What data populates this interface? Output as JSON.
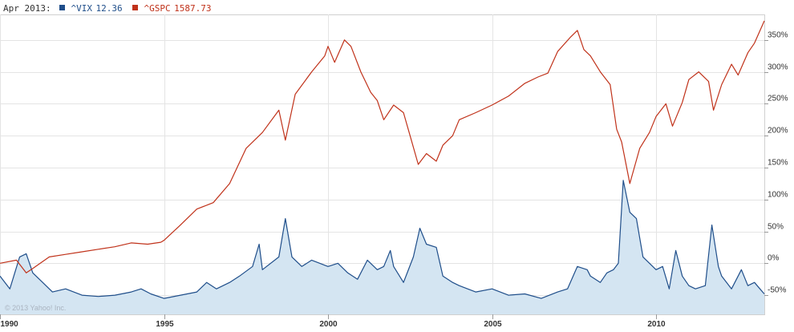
{
  "legend": {
    "date_label": "Apr 2013:",
    "series": [
      {
        "symbol": "^VIX",
        "value": "12.36",
        "color": "#1f4e8a"
      },
      {
        "symbol": "^GSPC",
        "value": "1587.73",
        "color": "#c0321a"
      }
    ]
  },
  "copyright": "© 2013 Yahoo! Inc.",
  "chart_data": {
    "type": "line",
    "grid": true,
    "y_axis_side": "right",
    "x_ticks": [
      "1990",
      "1995",
      "2000",
      "2005",
      "2010"
    ],
    "y_ticks": [
      "350%",
      "300%",
      "250%",
      "200%",
      "150%",
      "100%",
      "50%",
      "0%",
      "-50%"
    ],
    "ylim": [
      -80,
      390
    ],
    "xlim": [
      1990.0,
      2013.3
    ],
    "series": [
      {
        "name": "^GSPC",
        "color": "#c0321a",
        "area": false,
        "points": [
          [
            1990.0,
            0
          ],
          [
            1990.5,
            5
          ],
          [
            1990.8,
            -15
          ],
          [
            1991.0,
            -8
          ],
          [
            1991.5,
            10
          ],
          [
            1992.0,
            14
          ],
          [
            1992.5,
            18
          ],
          [
            1993.0,
            22
          ],
          [
            1993.5,
            26
          ],
          [
            1994.0,
            32
          ],
          [
            1994.5,
            30
          ],
          [
            1994.9,
            33
          ],
          [
            1995.0,
            36
          ],
          [
            1995.5,
            60
          ],
          [
            1996.0,
            85
          ],
          [
            1996.5,
            95
          ],
          [
            1997.0,
            125
          ],
          [
            1997.5,
            180
          ],
          [
            1998.0,
            205
          ],
          [
            1998.5,
            240
          ],
          [
            1998.7,
            193
          ],
          [
            1999.0,
            265
          ],
          [
            1999.5,
            300
          ],
          [
            1999.9,
            325
          ],
          [
            2000.0,
            340
          ],
          [
            2000.2,
            315
          ],
          [
            2000.5,
            350
          ],
          [
            2000.7,
            340
          ],
          [
            2001.0,
            300
          ],
          [
            2001.3,
            268
          ],
          [
            2001.5,
            255
          ],
          [
            2001.7,
            225
          ],
          [
            2002.0,
            248
          ],
          [
            2002.3,
            236
          ],
          [
            2002.5,
            200
          ],
          [
            2002.75,
            155
          ],
          [
            2003.0,
            172
          ],
          [
            2003.3,
            160
          ],
          [
            2003.5,
            185
          ],
          [
            2003.8,
            200
          ],
          [
            2004.0,
            225
          ],
          [
            2004.5,
            236
          ],
          [
            2005.0,
            248
          ],
          [
            2005.5,
            262
          ],
          [
            2006.0,
            282
          ],
          [
            2006.4,
            292
          ],
          [
            2006.7,
            298
          ],
          [
            2007.0,
            332
          ],
          [
            2007.4,
            355
          ],
          [
            2007.6,
            365
          ],
          [
            2007.8,
            335
          ],
          [
            2008.0,
            325
          ],
          [
            2008.3,
            300
          ],
          [
            2008.6,
            280
          ],
          [
            2008.8,
            210
          ],
          [
            2008.95,
            190
          ],
          [
            2009.2,
            125
          ],
          [
            2009.5,
            180
          ],
          [
            2009.8,
            205
          ],
          [
            2010.0,
            230
          ],
          [
            2010.3,
            250
          ],
          [
            2010.5,
            215
          ],
          [
            2010.8,
            252
          ],
          [
            2011.0,
            288
          ],
          [
            2011.3,
            300
          ],
          [
            2011.6,
            285
          ],
          [
            2011.75,
            240
          ],
          [
            2012.0,
            280
          ],
          [
            2012.3,
            312
          ],
          [
            2012.5,
            295
          ],
          [
            2012.8,
            330
          ],
          [
            2013.0,
            345
          ],
          [
            2013.3,
            380
          ]
        ]
      },
      {
        "name": "^VIX",
        "color": "#1f4e8a",
        "area": true,
        "area_color": "#d4e5f2",
        "points": [
          [
            1990.0,
            -20
          ],
          [
            1990.3,
            -40
          ],
          [
            1990.6,
            10
          ],
          [
            1990.8,
            15
          ],
          [
            1991.0,
            -15
          ],
          [
            1991.3,
            -30
          ],
          [
            1991.6,
            -45
          ],
          [
            1992.0,
            -40
          ],
          [
            1992.5,
            -50
          ],
          [
            1993.0,
            -52
          ],
          [
            1993.5,
            -50
          ],
          [
            1994.0,
            -45
          ],
          [
            1994.3,
            -40
          ],
          [
            1994.6,
            -48
          ],
          [
            1995.0,
            -55
          ],
          [
            1995.5,
            -50
          ],
          [
            1996.0,
            -45
          ],
          [
            1996.3,
            -30
          ],
          [
            1996.6,
            -40
          ],
          [
            1997.0,
            -30
          ],
          [
            1997.3,
            -20
          ],
          [
            1997.7,
            -5
          ],
          [
            1997.9,
            30
          ],
          [
            1998.0,
            -10
          ],
          [
            1998.5,
            10
          ],
          [
            1998.7,
            70
          ],
          [
            1998.9,
            10
          ],
          [
            1999.2,
            -5
          ],
          [
            1999.5,
            5
          ],
          [
            2000.0,
            -5
          ],
          [
            2000.3,
            0
          ],
          [
            2000.6,
            -15
          ],
          [
            2000.9,
            -25
          ],
          [
            2001.2,
            5
          ],
          [
            2001.5,
            -10
          ],
          [
            2001.7,
            -5
          ],
          [
            2001.9,
            20
          ],
          [
            2002.0,
            -5
          ],
          [
            2002.3,
            -30
          ],
          [
            2002.6,
            10
          ],
          [
            2002.8,
            55
          ],
          [
            2003.0,
            30
          ],
          [
            2003.3,
            25
          ],
          [
            2003.5,
            -20
          ],
          [
            2003.8,
            -30
          ],
          [
            2004.0,
            -35
          ],
          [
            2004.5,
            -45
          ],
          [
            2005.0,
            -40
          ],
          [
            2005.5,
            -50
          ],
          [
            2006.0,
            -48
          ],
          [
            2006.5,
            -55
          ],
          [
            2007.0,
            -45
          ],
          [
            2007.3,
            -40
          ],
          [
            2007.6,
            -5
          ],
          [
            2007.9,
            -10
          ],
          [
            2008.0,
            -20
          ],
          [
            2008.3,
            -30
          ],
          [
            2008.5,
            -15
          ],
          [
            2008.7,
            -10
          ],
          [
            2008.85,
            0
          ],
          [
            2009.0,
            130
          ],
          [
            2009.2,
            80
          ],
          [
            2009.4,
            70
          ],
          [
            2009.6,
            10
          ],
          [
            2010.0,
            -10
          ],
          [
            2010.2,
            -5
          ],
          [
            2010.4,
            -40
          ],
          [
            2010.6,
            20
          ],
          [
            2010.8,
            -20
          ],
          [
            2011.0,
            -35
          ],
          [
            2011.2,
            -40
          ],
          [
            2011.5,
            -35
          ],
          [
            2011.7,
            60
          ],
          [
            2011.9,
            -5
          ],
          [
            2012.0,
            -20
          ],
          [
            2012.3,
            -40
          ],
          [
            2012.6,
            -10
          ],
          [
            2012.8,
            -35
          ],
          [
            2013.0,
            -30
          ],
          [
            2013.2,
            -42
          ],
          [
            2013.3,
            -48
          ]
        ]
      }
    ]
  }
}
